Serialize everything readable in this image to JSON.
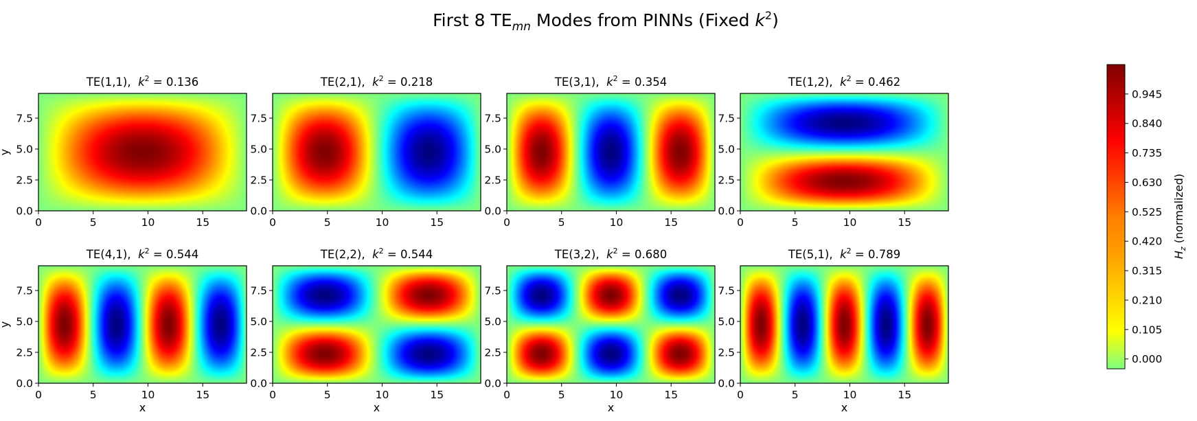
{
  "figure": {
    "title_prefix": "First 8 TE",
    "title_sub": "mn",
    "title_mid": " Modes from PINNs (Fixed ",
    "title_k": "k",
    "title_sup": "2",
    "title_suffix": ")"
  },
  "colorbar": {
    "label_var": "H",
    "label_sub": "z",
    "label_rest": " (normalized)",
    "ticks": [
      "0.000",
      "0.105",
      "0.210",
      "0.315",
      "0.420",
      "0.525",
      "0.630",
      "0.735",
      "0.840",
      "0.945"
    ],
    "range": [
      -0.035,
      1.05
    ],
    "colormap": "jet",
    "colors": [
      "#00007f",
      "#0000ff",
      "#007fff",
      "#00ffff",
      "#7fff7f",
      "#ffff00",
      "#ff7f00",
      "#ff0000",
      "#7f0000"
    ],
    "normalization": "fixed range, zero at green (0.5 of jet colormap)"
  },
  "chart_data": [
    {
      "type": "heatmap",
      "title_mode": "TE(1,1),",
      "title_k": "k",
      "title_sup": "2",
      "title_val": " = 0.136",
      "m": 1,
      "n": 1,
      "k2": 0.136,
      "xlabel": "",
      "ylabel": "y",
      "xlim": [
        0,
        19
      ],
      "ylim": [
        0,
        9.5
      ],
      "xticks": [
        "0",
        "5",
        "10",
        "15"
      ],
      "yticks": [
        "0.0",
        "2.5",
        "5.0",
        "7.5"
      ]
    },
    {
      "type": "heatmap",
      "title_mode": "TE(2,1),",
      "title_k": "k",
      "title_sup": "2",
      "title_val": " = 0.218",
      "m": 2,
      "n": 1,
      "k2": 0.218,
      "xlabel": "",
      "ylabel": "",
      "xlim": [
        0,
        19
      ],
      "ylim": [
        0,
        9.5
      ],
      "xticks": [
        "0",
        "5",
        "10",
        "15"
      ],
      "yticks": [
        "0.0",
        "2.5",
        "5.0",
        "7.5"
      ]
    },
    {
      "type": "heatmap",
      "title_mode": "TE(3,1),",
      "title_k": "k",
      "title_sup": "2",
      "title_val": " = 0.354",
      "m": 3,
      "n": 1,
      "k2": 0.354,
      "xlabel": "",
      "ylabel": "",
      "xlim": [
        0,
        19
      ],
      "ylim": [
        0,
        9.5
      ],
      "xticks": [
        "0",
        "5",
        "10",
        "15"
      ],
      "yticks": [
        "0.0",
        "2.5",
        "5.0",
        "7.5"
      ]
    },
    {
      "type": "heatmap",
      "title_mode": "TE(1,2),",
      "title_k": "k",
      "title_sup": "2",
      "title_val": " = 0.462",
      "m": 1,
      "n": 2,
      "k2": 0.462,
      "xlabel": "",
      "ylabel": "",
      "xlim": [
        0,
        19
      ],
      "ylim": [
        0,
        9.5
      ],
      "xticks": [
        "0",
        "5",
        "10",
        "15"
      ],
      "yticks": [
        "0.0",
        "2.5",
        "5.0",
        "7.5"
      ]
    },
    {
      "type": "heatmap",
      "title_mode": "TE(4,1),",
      "title_k": "k",
      "title_sup": "2",
      "title_val": " = 0.544",
      "m": 4,
      "n": 1,
      "k2": 0.544,
      "xlabel": "x",
      "ylabel": "y",
      "xlim": [
        0,
        19
      ],
      "ylim": [
        0,
        9.5
      ],
      "xticks": [
        "0",
        "5",
        "10",
        "15"
      ],
      "yticks": [
        "0.0",
        "2.5",
        "5.0",
        "7.5"
      ]
    },
    {
      "type": "heatmap",
      "title_mode": "TE(2,2),",
      "title_k": "k",
      "title_sup": "2",
      "title_val": " = 0.544",
      "m": 2,
      "n": 2,
      "k2": 0.544,
      "xlabel": "x",
      "ylabel": "",
      "xlim": [
        0,
        19
      ],
      "ylim": [
        0,
        9.5
      ],
      "xticks": [
        "0",
        "5",
        "10",
        "15"
      ],
      "yticks": [
        "0.0",
        "2.5",
        "5.0",
        "7.5"
      ]
    },
    {
      "type": "heatmap",
      "title_mode": "TE(3,2),",
      "title_k": "k",
      "title_sup": "2",
      "title_val": " = 0.680",
      "m": 3,
      "n": 2,
      "k2": 0.68,
      "xlabel": "x",
      "ylabel": "",
      "xlim": [
        0,
        19
      ],
      "ylim": [
        0,
        9.5
      ],
      "xticks": [
        "0",
        "5",
        "10",
        "15"
      ],
      "yticks": [
        "0.0",
        "2.5",
        "5.0",
        "7.5"
      ]
    },
    {
      "type": "heatmap",
      "title_mode": "TE(5,1),",
      "title_k": "k",
      "title_sup": "2",
      "title_val": " = 0.789",
      "m": 5,
      "n": 1,
      "k2": 0.789,
      "xlabel": "x",
      "ylabel": "",
      "xlim": [
        0,
        19
      ],
      "ylim": [
        0,
        9.5
      ],
      "xticks": [
        "0",
        "5",
        "10",
        "15"
      ],
      "yticks": [
        "0.0",
        "2.5",
        "5.0",
        "7.5"
      ]
    }
  ]
}
